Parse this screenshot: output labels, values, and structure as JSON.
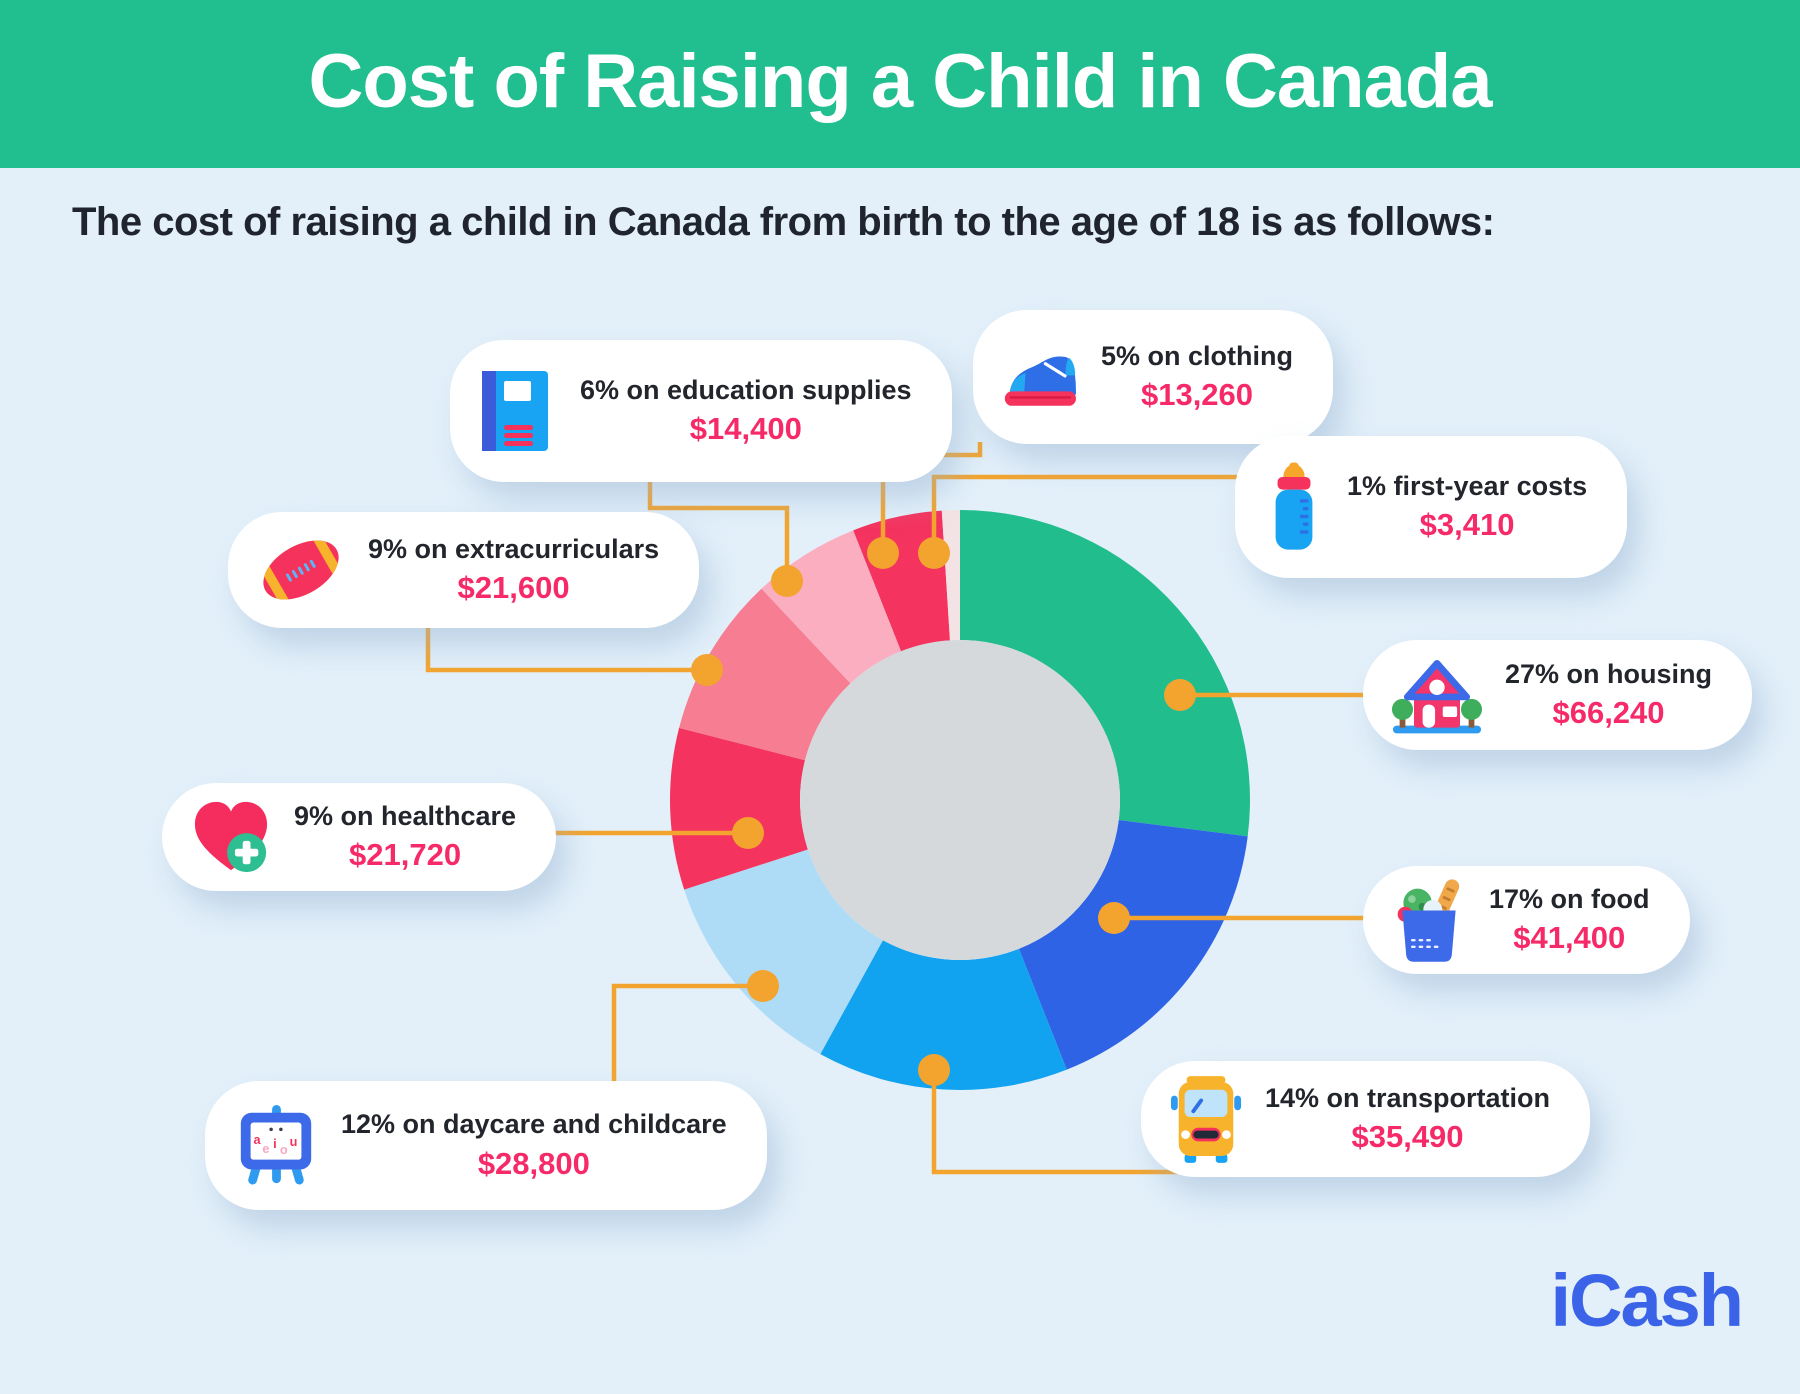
{
  "header": {
    "title": "Cost of Raising a Child in Canada"
  },
  "intro": {
    "subtitle": "The cost of raising a child in Canada from birth to the age of 18 is as follows:"
  },
  "brand": {
    "logo_text": "iCash",
    "color": "#3A63E8"
  },
  "colors": {
    "banner_green": "#21BE8F",
    "background": "#E3F0FA",
    "card_white": "#FFFFFF",
    "label_text": "#23252D",
    "value_pink": "#F62A68",
    "connector_orange": "#F3A42F",
    "donut_center_gray": "#D5D9DC"
  },
  "chart_data": {
    "type": "pie",
    "variant": "donut",
    "title": "Cost of Raising a Child in Canada",
    "subtitle": "The cost of raising a child in Canada from birth to the age of 18 is as follows:",
    "units": "CAD",
    "start_angle": "top",
    "direction": "clockwise",
    "inner_radius_ratio": 0.55,
    "legend_position": "callout-cards",
    "center_color": "#D5D9DC",
    "connector_color": "#F3A42F",
    "segments": [
      {
        "id": "housing",
        "label": "27% on housing",
        "pct": 27,
        "amount": 66240,
        "value_label": "$66,240",
        "color": "#21BD8D",
        "icon": "house-icon"
      },
      {
        "id": "food",
        "label": "17% on food",
        "pct": 17,
        "amount": 41400,
        "value_label": "$41,400",
        "color": "#2F63E6",
        "icon": "grocery-bag-icon"
      },
      {
        "id": "transportation",
        "label": "14% on transportation",
        "pct": 14,
        "amount": 35490,
        "value_label": "$35,490",
        "color": "#12A3F0",
        "icon": "school-bus-icon"
      },
      {
        "id": "daycare",
        "label": "12% on daycare and childcare",
        "pct": 12,
        "amount": 28800,
        "value_label": "$28,800",
        "color": "#AEDCF7",
        "icon": "easel-icon"
      },
      {
        "id": "healthcare",
        "label": "9% on healthcare",
        "pct": 9,
        "amount": 21720,
        "value_label": "$21,720",
        "color": "#F4335E",
        "icon": "heart-icon"
      },
      {
        "id": "extracurriculars",
        "label": "9% on extracurriculars",
        "pct": 9,
        "amount": 21600,
        "value_label": "$21,600",
        "color": "#F77E92",
        "icon": "football-icon"
      },
      {
        "id": "education",
        "label": "6% on education supplies",
        "pct": 6,
        "amount": 14400,
        "value_label": "$14,400",
        "color": "#FAAEC0",
        "icon": "book-icon"
      },
      {
        "id": "clothing",
        "label": "5% on clothing",
        "pct": 5,
        "amount": 13260,
        "value_label": "$13,260",
        "color": "#F4335E",
        "icon": "sneaker-icon"
      },
      {
        "id": "first_year",
        "label": "1% first-year costs",
        "pct": 1,
        "amount": 3410,
        "value_label": "$3,410",
        "color": "#F3E3E5",
        "icon": "baby-bottle-icon"
      }
    ]
  }
}
